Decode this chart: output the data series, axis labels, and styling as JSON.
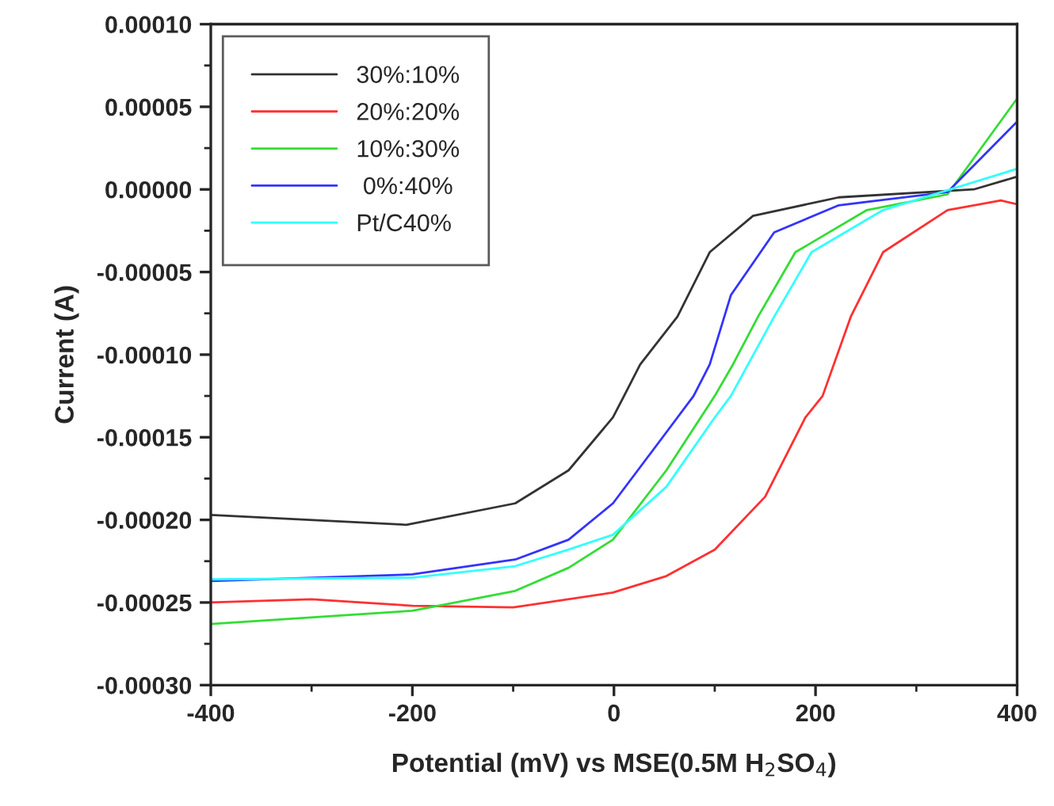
{
  "chart_data": {
    "type": "line",
    "xlabel": "Potential (mV) vs MSE(0.5M H$_{2}$SO$_{4}$)",
    "ylabel": "Current (A)",
    "xlim": [
      -400,
      400
    ],
    "xticks": [
      -400,
      -200,
      0,
      200,
      400
    ],
    "ylim": [
      -0.0003,
      0.0001
    ],
    "yticks": [
      {
        "value": -0.0003,
        "label": "-0.00030"
      },
      {
        "value": -0.00025,
        "label": "-0.00025"
      },
      {
        "value": -0.0002,
        "label": "-0.00020"
      },
      {
        "value": -0.00015,
        "label": "-0.00015"
      },
      {
        "value": -0.0001,
        "label": "-0.00010"
      },
      {
        "value": -5e-05,
        "label": "-0.00005"
      },
      {
        "value": 0,
        "label": "0.00000"
      },
      {
        "value": 5e-05,
        "label": "0.00005"
      },
      {
        "value": 0.0001,
        "label": "0.00010"
      }
    ],
    "grid": false,
    "legend": "top left",
    "marker": "none",
    "line_style": "solid",
    "series": [
      {
        "name": "30%:10%",
        "color": "#333333",
        "x": [
          -400,
          -206,
          -98,
          -45,
          -1,
          10,
          26,
          63,
          95,
          138,
          223,
          357,
          400
        ],
        "values": [
          -0.000197,
          -0.000203,
          -0.00019,
          -0.00017,
          -0.000138,
          -0.000125,
          -0.000106,
          -7.7e-05,
          -3.8e-05,
          -1.6e-05,
          -4.8e-06,
          0,
          7.7e-06
        ]
      },
      {
        "name": "20%:20%",
        "color": "#ff3030",
        "x": [
          -400,
          -300,
          -200,
          -100,
          -1,
          52,
          100,
          150,
          190,
          207,
          235,
          267,
          331,
          384,
          400
        ],
        "values": [
          -0.00025,
          -0.000248,
          -0.000252,
          -0.000253,
          -0.000244,
          -0.000234,
          -0.000218,
          -0.000186,
          -0.000138,
          -0.000125,
          -7.7e-05,
          -3.8e-05,
          -1.25e-05,
          -6.7e-06,
          -9e-06
        ]
      },
      {
        "name": "10%:30%",
        "color": "#33dd33",
        "x": [
          -400,
          -200,
          -98,
          -45,
          -1,
          52,
          100,
          118,
          143,
          180,
          251,
          331,
          400
        ],
        "values": [
          -0.000263,
          -0.000255,
          -0.000243,
          -0.000229,
          -0.000212,
          -0.00017,
          -0.000125,
          -0.000106,
          -7.7e-05,
          -3.8e-05,
          -1.25e-05,
          -3e-06,
          5.5e-05
        ]
      },
      {
        "name": " 0%:40%",
        "color": "#3333ff",
        "x": [
          -400,
          -200,
          -98,
          -45,
          -1,
          52,
          79,
          95,
          116,
          159,
          223,
          331,
          400
        ],
        "values": [
          -0.000237,
          -0.000233,
          -0.000224,
          -0.000212,
          -0.00019,
          -0.000147,
          -0.000125,
          -0.000106,
          -6.4e-05,
          -2.6e-05,
          -9.6e-06,
          -1.6e-06,
          4.1e-05
        ]
      },
      {
        "name": "Pt/C40%",
        "color": "#33ffff",
        "x": [
          -400,
          -200,
          -98,
          -45,
          -1,
          52,
          100,
          116,
          133,
          159,
          196,
          267,
          400
        ],
        "values": [
          -0.000236,
          -0.000235,
          -0.000228,
          -0.000218,
          -0.000209,
          -0.00018,
          -0.000138,
          -0.000125,
          -0.000106,
          -7.7e-05,
          -3.8e-05,
          -1.25e-05,
          1.25e-05
        ]
      }
    ]
  }
}
